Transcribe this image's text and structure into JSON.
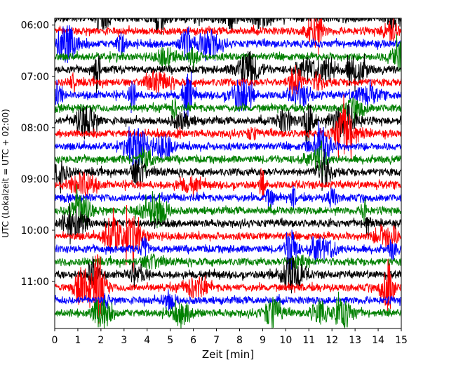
{
  "chart_data": {
    "type": "line",
    "title": "",
    "xlabel": "Zeit  [min]",
    "ylabel": "UTC (Lokalzeit = UTC + 02:00)",
    "xlim": [
      0,
      15
    ],
    "x_ticks": [
      0,
      1,
      2,
      3,
      4,
      5,
      6,
      7,
      8,
      9,
      10,
      11,
      12,
      13,
      14,
      15
    ],
    "x_tick_labels": [
      "0",
      "1",
      "2",
      "3",
      "4",
      "5",
      "6",
      "7",
      "8",
      "9",
      "10",
      "11",
      "12",
      "13",
      "14",
      "15"
    ],
    "y_tick_labels": [
      "06:00",
      "07:00",
      "08:00",
      "09:00",
      "10:00",
      "11:00"
    ],
    "y_range": [
      "05:52",
      "11:55"
    ],
    "trace_interval_min": 15,
    "trace_colors": [
      "#000000",
      "#ff0000",
      "#0000ff",
      "#008000"
    ],
    "trace_start_times": [
      "05:52",
      "06:07",
      "06:22",
      "06:37",
      "06:52",
      "07:07",
      "07:22",
      "07:37",
      "07:52",
      "08:07",
      "08:22",
      "08:37",
      "08:52",
      "09:07",
      "09:22",
      "09:37",
      "09:52",
      "10:07",
      "10:22",
      "10:37",
      "10:52",
      "11:07",
      "11:22",
      "11:37"
    ],
    "grid": false,
    "legend": "none"
  }
}
